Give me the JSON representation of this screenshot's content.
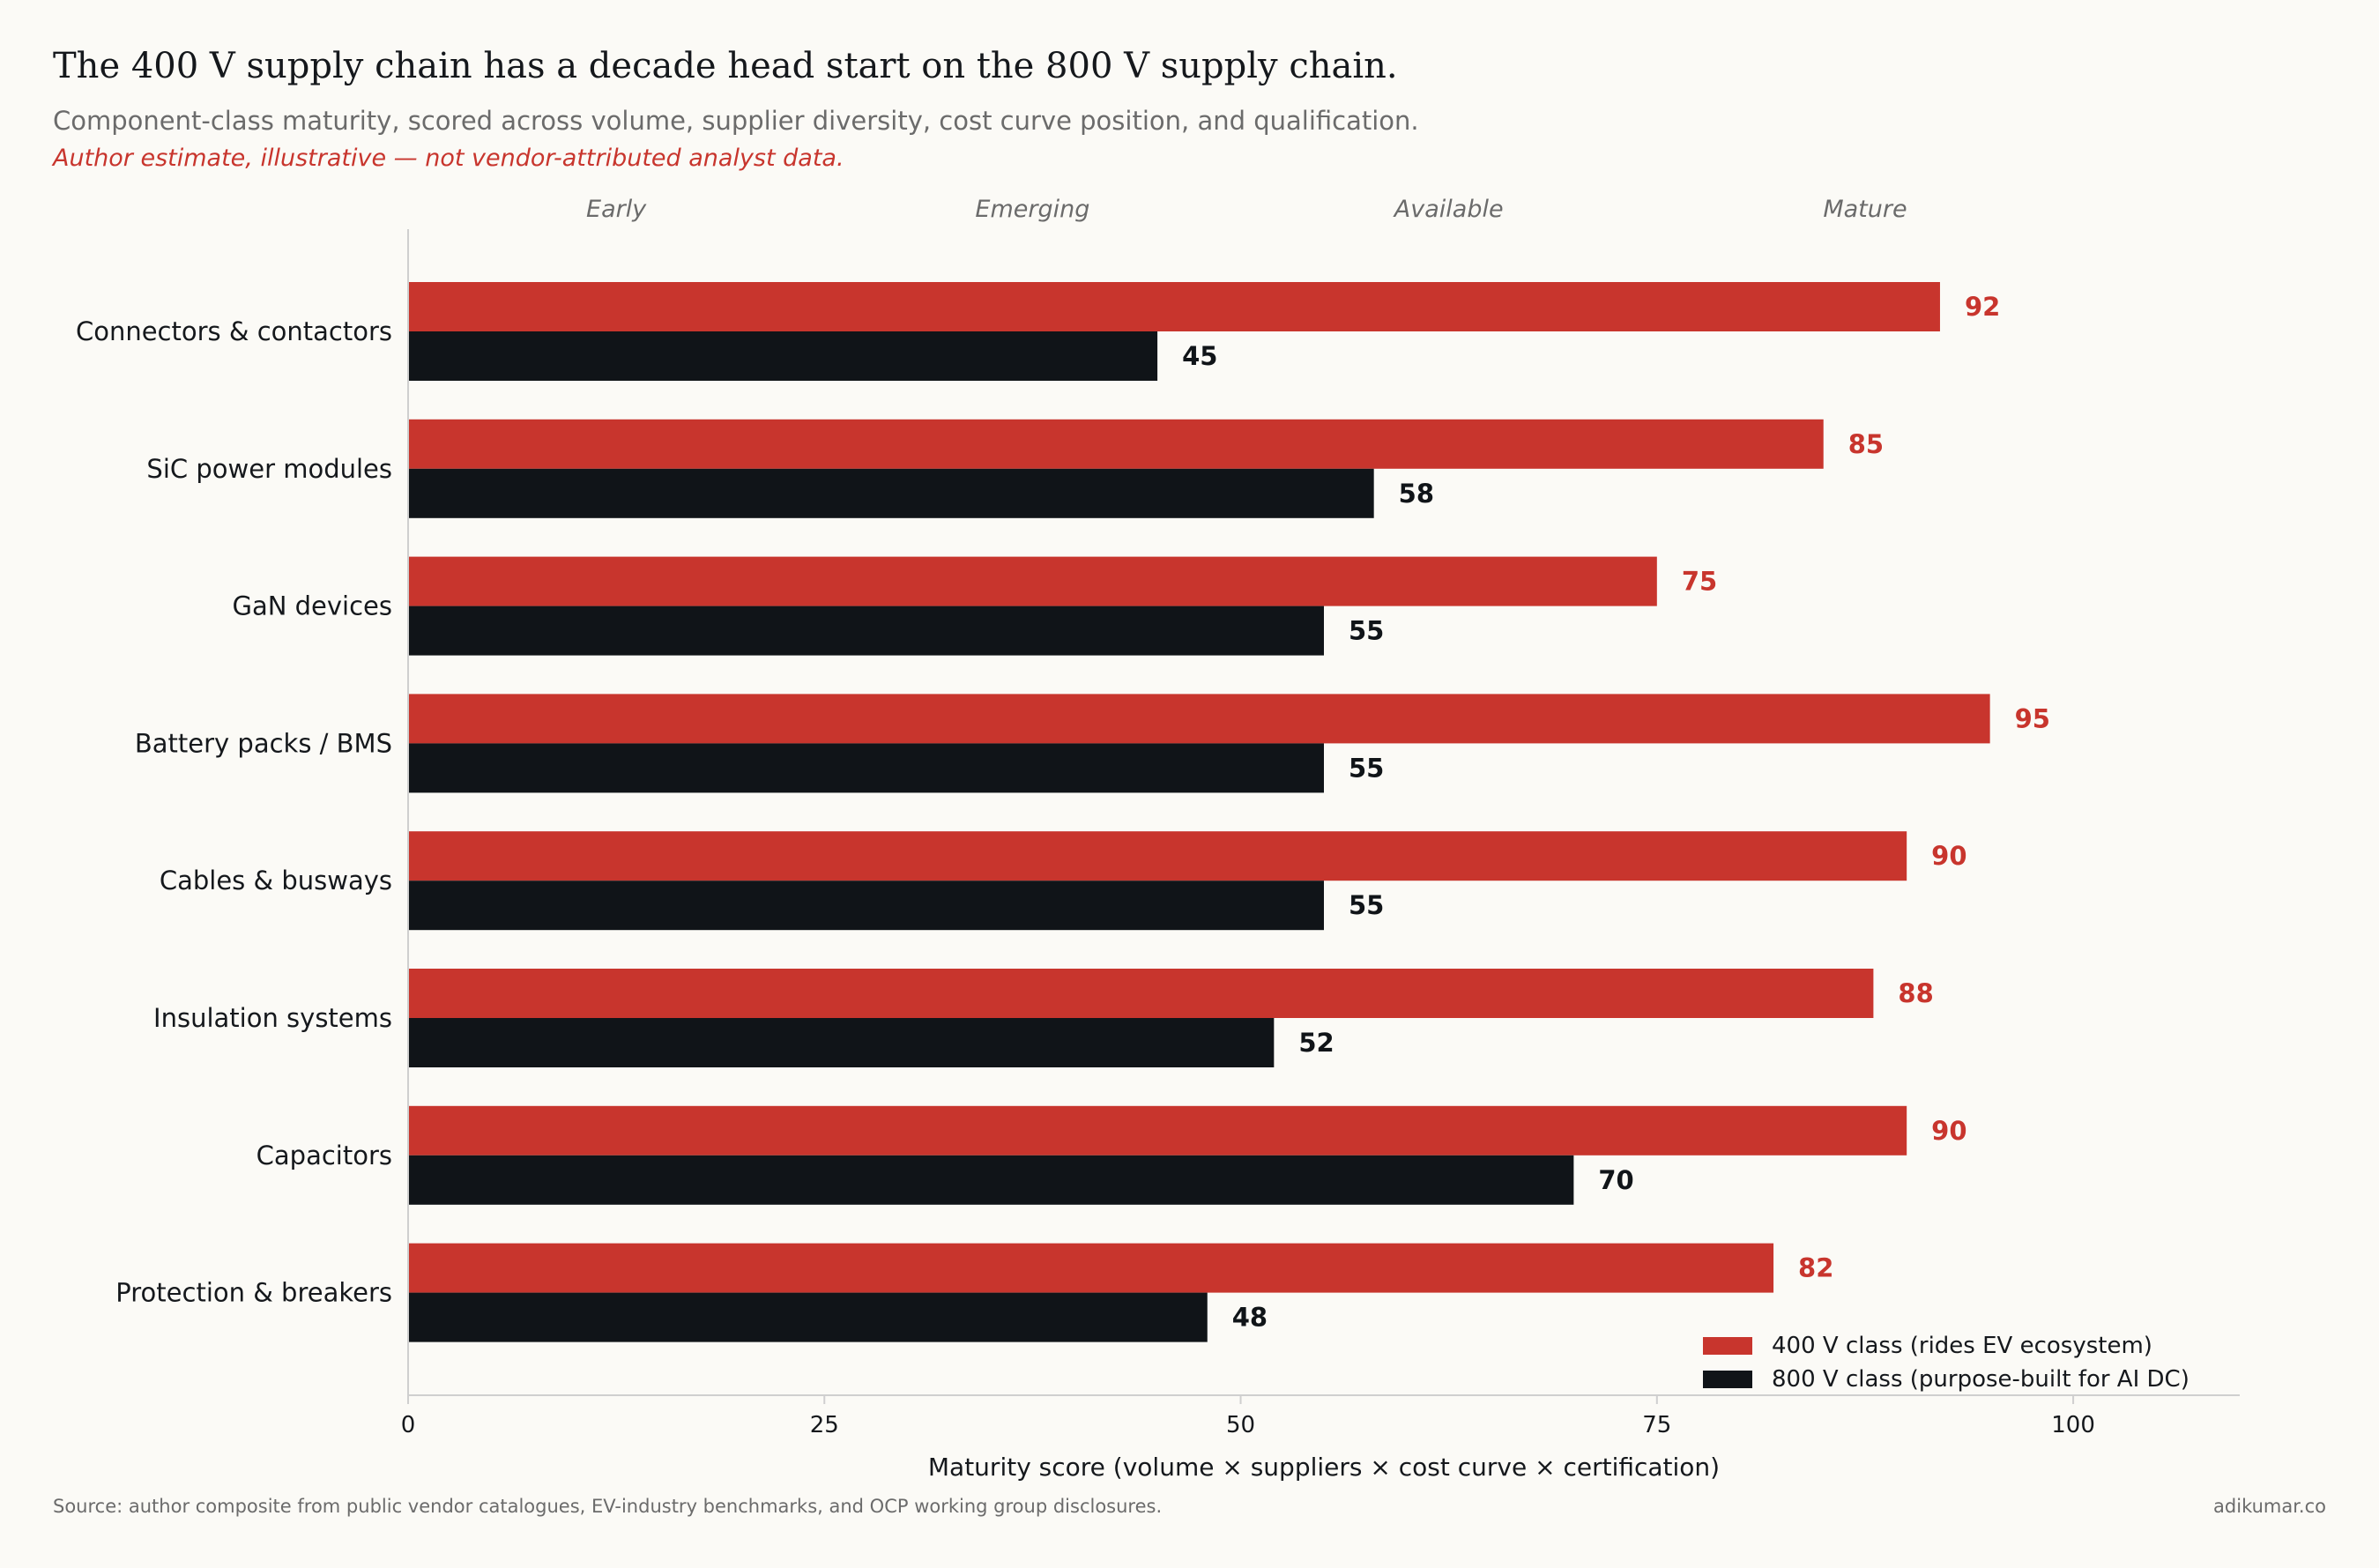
{
  "header": {
    "title": "The 400 V supply chain has a decade head start on the 800 V supply chain.",
    "subtitle": "Component-class maturity, scored across volume, supplier diversity, cost curve position, and qualification.",
    "note": "Author estimate, illustrative — not vendor-attributed analyst data."
  },
  "footer": {
    "source": "Source: author composite from public vendor catalogues, EV-industry benchmarks, and OCP working group disclosures.",
    "brand": "adikumar.co"
  },
  "chart_data": {
    "type": "bar",
    "orientation": "horizontal",
    "categories": [
      "Connectors & contactors",
      "SiC power modules",
      "GaN devices",
      "Battery packs / BMS",
      "Cables & busways",
      "Insulation systems",
      "Capacitors",
      "Protection & breakers"
    ],
    "series": [
      {
        "name": "400 V class (rides EV ecosystem)",
        "color": "#c8352d",
        "values": [
          92,
          85,
          75,
          95,
          90,
          88,
          90,
          82
        ]
      },
      {
        "name": "800 V class (purpose-built for AI DC)",
        "color": "#101418",
        "values": [
          45,
          58,
          55,
          55,
          55,
          52,
          70,
          48
        ]
      }
    ],
    "xlabel": "Maturity score (volume × suppliers × cost curve × certification)",
    "ylabel": "",
    "xlim": [
      0,
      110
    ],
    "xticks": [
      0,
      25,
      50,
      75,
      100
    ],
    "maturity_bands": [
      {
        "label": "Early",
        "center": 12.5
      },
      {
        "label": "Emerging",
        "center": 37.5
      },
      {
        "label": "Available",
        "center": 62.5
      },
      {
        "label": "Mature",
        "center": 87.5
      }
    ],
    "grid": false,
    "legend_position": "bottom-right"
  }
}
